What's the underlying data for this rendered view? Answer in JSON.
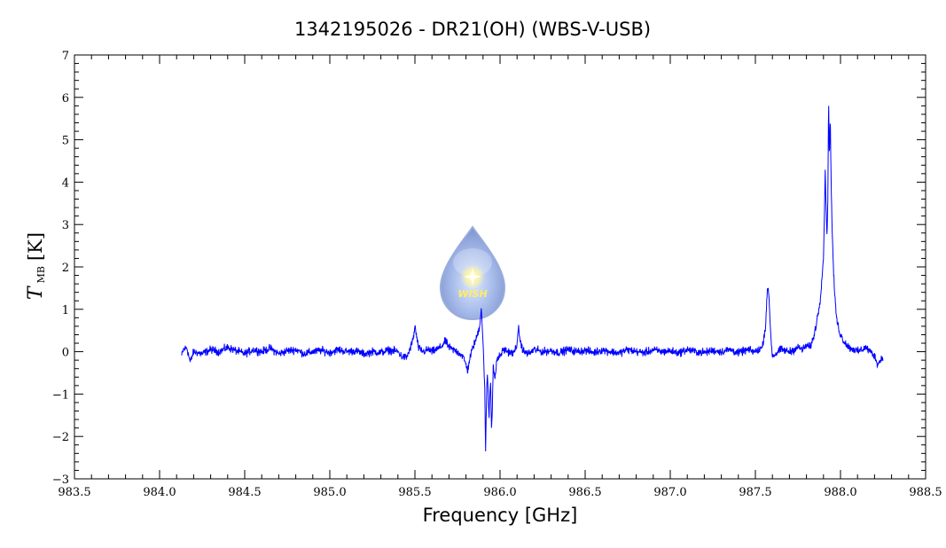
{
  "chart_data": {
    "type": "line",
    "title": "1342195026 - DR21(OH) (WBS-V-USB)",
    "xlabel": "Frequency [GHz]",
    "ylabel": {
      "symbol": "T",
      "subscript": "MB",
      "unit": "[K]"
    },
    "xlim": [
      983.5,
      988.5
    ],
    "ylim": [
      -3,
      7
    ],
    "xticks": [
      "983.5",
      "984.0",
      "984.5",
      "985.0",
      "985.5",
      "986.0",
      "986.5",
      "987.0",
      "987.5",
      "988.0",
      "988.5"
    ],
    "yticks": [
      "−3",
      "−2",
      "−1",
      "0",
      "1",
      "2",
      "3",
      "4",
      "5",
      "6",
      "7"
    ],
    "grid": false,
    "series": [
      {
        "color": "#0000ff",
        "x": [
          984.13,
          984.14,
          984.16,
          984.18,
          984.2,
          984.25,
          984.3,
          984.35,
          984.4,
          984.45,
          984.5,
          984.55,
          984.6,
          984.65,
          984.7,
          984.75,
          984.8,
          984.85,
          984.9,
          984.95,
          985.0,
          985.05,
          985.1,
          985.15,
          985.2,
          985.25,
          985.3,
          985.35,
          985.4,
          985.42,
          985.45,
          985.47,
          985.49,
          985.5,
          985.51,
          985.52,
          985.53,
          985.55,
          985.58,
          985.6,
          985.65,
          985.68,
          985.7,
          985.72,
          985.75,
          985.78,
          985.8,
          985.81,
          985.82,
          985.84,
          985.86,
          985.88,
          985.89,
          985.9,
          985.91,
          985.915,
          985.92,
          985.925,
          985.93,
          985.935,
          985.94,
          985.945,
          985.95,
          985.955,
          985.96,
          985.97,
          985.98,
          986.0,
          986.02,
          986.05,
          986.08,
          986.1,
          986.11,
          986.12,
          986.14,
          986.17,
          986.2,
          986.25,
          986.3,
          986.35,
          986.4,
          986.45,
          986.5,
          986.55,
          986.6,
          986.65,
          986.7,
          986.75,
          986.8,
          986.85,
          986.9,
          986.95,
          987.0,
          987.05,
          987.1,
          987.15,
          987.2,
          987.25,
          987.3,
          987.35,
          987.4,
          987.45,
          987.5,
          987.54,
          987.56,
          987.57,
          987.58,
          987.59,
          987.6,
          987.62,
          987.65,
          987.7,
          987.75,
          987.78,
          987.8,
          987.82,
          987.84,
          987.86,
          987.88,
          987.9,
          987.91,
          987.92,
          987.925,
          987.93,
          987.935,
          987.94,
          987.945,
          987.95,
          987.96,
          987.97,
          987.98,
          988.0,
          988.02,
          988.05,
          988.08,
          988.1,
          988.15,
          988.2,
          988.22,
          988.25
        ],
        "y": [
          -0.1,
          0.05,
          0.1,
          -0.25,
          0.0,
          -0.05,
          0.05,
          0.0,
          0.1,
          0.02,
          -0.05,
          0.05,
          0.0,
          0.08,
          -0.05,
          0.02,
          0.05,
          -0.05,
          0.0,
          0.03,
          -0.02,
          0.05,
          0.0,
          0.02,
          -0.05,
          0.0,
          -0.02,
          0.04,
          0.0,
          -0.1,
          -0.15,
          0.05,
          0.3,
          0.6,
          0.35,
          0.1,
          0.05,
          0.0,
          0.05,
          0.0,
          0.1,
          0.25,
          0.1,
          0.05,
          0.0,
          -0.1,
          -0.3,
          -0.45,
          -0.2,
          0.1,
          0.3,
          0.6,
          1.05,
          0.2,
          -0.8,
          -2.45,
          -1.2,
          -0.5,
          -0.9,
          -1.6,
          -1.0,
          -0.7,
          -1.8,
          -1.3,
          -0.3,
          -0.7,
          -0.2,
          -0.1,
          0.05,
          0.0,
          -0.05,
          0.2,
          0.55,
          0.2,
          0.0,
          -0.05,
          0.05,
          0.0,
          0.02,
          -0.02,
          0.05,
          0.0,
          0.03,
          -0.02,
          0.04,
          0.0,
          -0.03,
          0.05,
          0.0,
          -0.02,
          0.04,
          0.0,
          0.02,
          -0.03,
          0.05,
          0.0,
          -0.02,
          0.03,
          0.0,
          0.05,
          -0.03,
          0.04,
          0.0,
          0.1,
          0.6,
          1.5,
          1.3,
          0.4,
          -0.1,
          -0.05,
          0.05,
          0.0,
          0.1,
          0.05,
          0.15,
          0.1,
          0.3,
          0.7,
          1.2,
          2.2,
          4.2,
          2.8,
          3.3,
          5.9,
          4.6,
          5.6,
          4.0,
          3.0,
          1.8,
          1.1,
          0.7,
          0.4,
          0.25,
          0.1,
          0.05,
          0.0,
          0.1,
          -0.1,
          -0.3,
          -0.1
        ]
      }
    ],
    "logo": {
      "text": "WISH"
    }
  }
}
